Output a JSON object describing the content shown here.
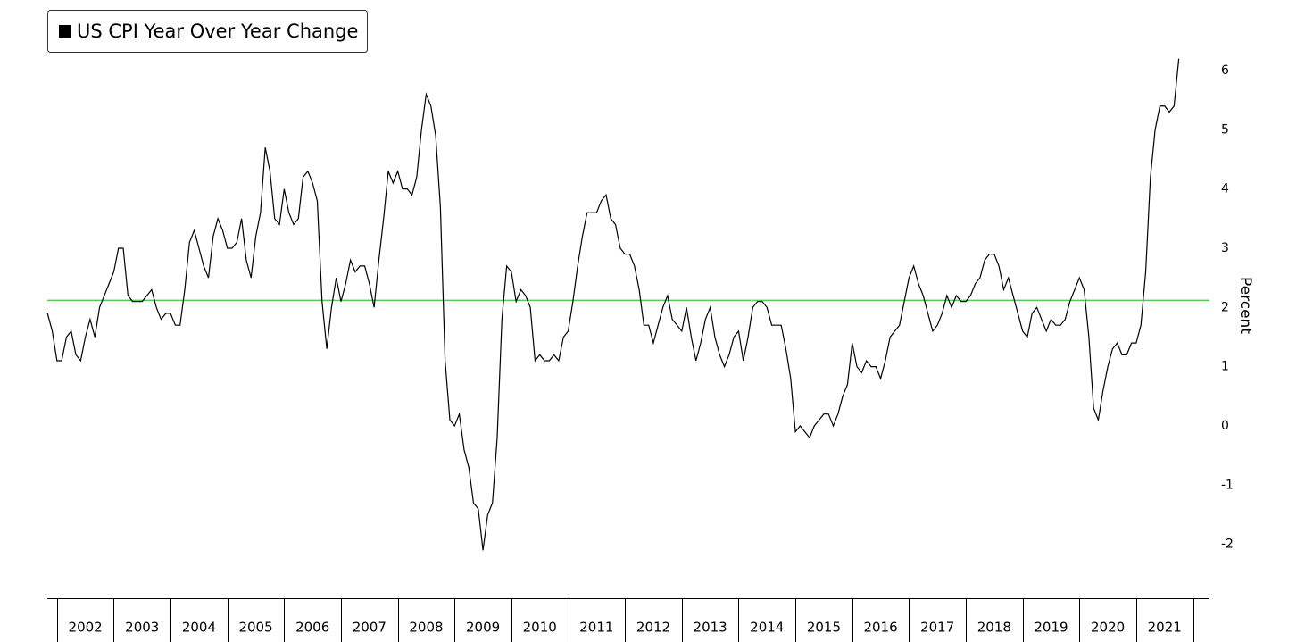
{
  "chart_data": {
    "type": "line",
    "legend_title": "US CPI Year Over Year Change",
    "y_axis_label": "Percent",
    "series": [
      {
        "name": "US CPI Year Over Year Change",
        "color": "#000000",
        "x": [
          2001.833,
          2001.917,
          2002.0,
          2002.083,
          2002.167,
          2002.25,
          2002.333,
          2002.417,
          2002.5,
          2002.583,
          2002.667,
          2002.75,
          2002.833,
          2002.917,
          2003.0,
          2003.083,
          2003.167,
          2003.25,
          2003.333,
          2003.417,
          2003.5,
          2003.583,
          2003.667,
          2003.75,
          2003.833,
          2003.917,
          2004.0,
          2004.083,
          2004.167,
          2004.25,
          2004.333,
          2004.417,
          2004.5,
          2004.583,
          2004.667,
          2004.75,
          2004.833,
          2004.917,
          2005.0,
          2005.083,
          2005.167,
          2005.25,
          2005.333,
          2005.417,
          2005.5,
          2005.583,
          2005.667,
          2005.75,
          2005.833,
          2005.917,
          2006.0,
          2006.083,
          2006.167,
          2006.25,
          2006.333,
          2006.417,
          2006.5,
          2006.583,
          2006.667,
          2006.75,
          2006.833,
          2006.917,
          2007.0,
          2007.083,
          2007.167,
          2007.25,
          2007.333,
          2007.417,
          2007.5,
          2007.583,
          2007.667,
          2007.75,
          2007.833,
          2007.917,
          2008.0,
          2008.083,
          2008.167,
          2008.25,
          2008.333,
          2008.417,
          2008.5,
          2008.583,
          2008.667,
          2008.75,
          2008.833,
          2008.917,
          2009.0,
          2009.083,
          2009.167,
          2009.25,
          2009.333,
          2009.417,
          2009.5,
          2009.583,
          2009.667,
          2009.75,
          2009.833,
          2009.917,
          2010.0,
          2010.083,
          2010.167,
          2010.25,
          2010.333,
          2010.417,
          2010.5,
          2010.583,
          2010.667,
          2010.75,
          2010.833,
          2010.917,
          2011.0,
          2011.083,
          2011.167,
          2011.25,
          2011.333,
          2011.417,
          2011.5,
          2011.583,
          2011.667,
          2011.75,
          2011.833,
          2011.917,
          2012.0,
          2012.083,
          2012.167,
          2012.25,
          2012.333,
          2012.417,
          2012.5,
          2012.583,
          2012.667,
          2012.75,
          2012.833,
          2012.917,
          2013.0,
          2013.083,
          2013.167,
          2013.25,
          2013.333,
          2013.417,
          2013.5,
          2013.583,
          2013.667,
          2013.75,
          2013.833,
          2013.917,
          2014.0,
          2014.083,
          2014.167,
          2014.25,
          2014.333,
          2014.417,
          2014.5,
          2014.583,
          2014.667,
          2014.75,
          2014.833,
          2014.917,
          2015.0,
          2015.083,
          2015.167,
          2015.25,
          2015.333,
          2015.417,
          2015.5,
          2015.583,
          2015.667,
          2015.75,
          2015.833,
          2015.917,
          2016.0,
          2016.083,
          2016.167,
          2016.25,
          2016.333,
          2016.417,
          2016.5,
          2016.583,
          2016.667,
          2016.75,
          2016.833,
          2016.917,
          2017.0,
          2017.083,
          2017.167,
          2017.25,
          2017.333,
          2017.417,
          2017.5,
          2017.583,
          2017.667,
          2017.75,
          2017.833,
          2017.917,
          2018.0,
          2018.083,
          2018.167,
          2018.25,
          2018.333,
          2018.417,
          2018.5,
          2018.583,
          2018.667,
          2018.75,
          2018.833,
          2018.917,
          2019.0,
          2019.083,
          2019.167,
          2019.25,
          2019.333,
          2019.417,
          2019.5,
          2019.583,
          2019.667,
          2019.75,
          2019.833,
          2019.917,
          2020.0,
          2020.083,
          2020.167,
          2020.25,
          2020.333,
          2020.417,
          2020.5,
          2020.583,
          2020.667,
          2020.75,
          2020.833,
          2020.917,
          2021.0,
          2021.083,
          2021.167,
          2021.25,
          2021.333,
          2021.417,
          2021.5,
          2021.583,
          2021.667,
          2021.75
        ],
        "values": [
          1.9,
          1.6,
          1.1,
          1.1,
          1.5,
          1.6,
          1.2,
          1.1,
          1.5,
          1.8,
          1.5,
          2.0,
          2.2,
          2.4,
          2.6,
          3.0,
          3.0,
          2.2,
          2.1,
          2.1,
          2.1,
          2.2,
          2.3,
          2.0,
          1.8,
          1.9,
          1.9,
          1.7,
          1.7,
          2.3,
          3.1,
          3.3,
          3.0,
          2.7,
          2.5,
          3.2,
          3.5,
          3.3,
          3.0,
          3.0,
          3.1,
          3.5,
          2.8,
          2.5,
          3.2,
          3.6,
          4.7,
          4.3,
          3.5,
          3.4,
          4.0,
          3.6,
          3.4,
          3.5,
          4.2,
          4.3,
          4.1,
          3.8,
          2.1,
          1.3,
          2.0,
          2.5,
          2.1,
          2.4,
          2.8,
          2.6,
          2.7,
          2.7,
          2.4,
          2.0,
          2.8,
          3.5,
          4.3,
          4.1,
          4.3,
          4.0,
          4.0,
          3.9,
          4.2,
          5.0,
          5.6,
          5.4,
          4.9,
          3.7,
          1.1,
          0.1,
          0.0,
          0.2,
          -0.4,
          -0.7,
          -1.3,
          -1.4,
          -2.1,
          -1.5,
          -1.3,
          -0.2,
          1.8,
          2.7,
          2.6,
          2.1,
          2.3,
          2.2,
          2.0,
          1.1,
          1.2,
          1.1,
          1.1,
          1.2,
          1.1,
          1.5,
          1.6,
          2.1,
          2.7,
          3.2,
          3.6,
          3.6,
          3.6,
          3.8,
          3.9,
          3.5,
          3.4,
          3.0,
          2.9,
          2.9,
          2.7,
          2.3,
          1.7,
          1.7,
          1.4,
          1.7,
          2.0,
          2.2,
          1.8,
          1.7,
          1.6,
          2.0,
          1.5,
          1.1,
          1.4,
          1.8,
          2.0,
          1.5,
          1.2,
          1.0,
          1.2,
          1.5,
          1.6,
          1.1,
          1.5,
          2.0,
          2.1,
          2.1,
          2.0,
          1.7,
          1.7,
          1.7,
          1.3,
          0.8,
          -0.1,
          0.0,
          -0.1,
          -0.2,
          0.0,
          0.1,
          0.2,
          0.2,
          0.0,
          0.2,
          0.5,
          0.7,
          1.4,
          1.0,
          0.9,
          1.1,
          1.0,
          1.0,
          0.8,
          1.1,
          1.5,
          1.6,
          1.7,
          2.1,
          2.5,
          2.7,
          2.4,
          2.2,
          1.9,
          1.6,
          1.7,
          1.9,
          2.2,
          2.0,
          2.2,
          2.1,
          2.1,
          2.2,
          2.4,
          2.5,
          2.8,
          2.9,
          2.9,
          2.7,
          2.3,
          2.5,
          2.2,
          1.9,
          1.6,
          1.5,
          1.9,
          2.0,
          1.8,
          1.6,
          1.8,
          1.7,
          1.7,
          1.8,
          2.1,
          2.3,
          2.5,
          2.3,
          1.5,
          0.3,
          0.1,
          0.6,
          1.0,
          1.3,
          1.4,
          1.2,
          1.2,
          1.4,
          1.4,
          1.7,
          2.6,
          4.2,
          5.0,
          5.4,
          5.4,
          5.3,
          5.4,
          6.2
        ]
      }
    ],
    "reference_line": {
      "value": 2.12,
      "color": "#55cc55"
    },
    "xlim": [
      2001.83,
      2022.29
    ],
    "ylim": [
      -2.91,
      7.04
    ],
    "yticks": [
      -2,
      -1,
      0,
      1,
      2,
      3,
      4,
      5,
      6
    ],
    "x_separators": [
      2002,
      2003,
      2004,
      2005,
      2006,
      2007,
      2008,
      2009,
      2010,
      2011,
      2012,
      2013,
      2014,
      2015,
      2016,
      2017,
      2018,
      2019,
      2020,
      2021,
      2022
    ],
    "xticks": [
      {
        "value": 2002.5,
        "label": "2002"
      },
      {
        "value": 2003.5,
        "label": "2003"
      },
      {
        "value": 2004.5,
        "label": "2004"
      },
      {
        "value": 2005.5,
        "label": "2005"
      },
      {
        "value": 2006.5,
        "label": "2006"
      },
      {
        "value": 2007.5,
        "label": "2007"
      },
      {
        "value": 2008.5,
        "label": "2008"
      },
      {
        "value": 2009.5,
        "label": "2009"
      },
      {
        "value": 2010.5,
        "label": "2010"
      },
      {
        "value": 2011.5,
        "label": "2011"
      },
      {
        "value": 2012.5,
        "label": "2012"
      },
      {
        "value": 2013.5,
        "label": "2013"
      },
      {
        "value": 2014.5,
        "label": "2014"
      },
      {
        "value": 2015.5,
        "label": "2015"
      },
      {
        "value": 2016.5,
        "label": "2016"
      },
      {
        "value": 2017.5,
        "label": "2017"
      },
      {
        "value": 2018.5,
        "label": "2018"
      },
      {
        "value": 2019.5,
        "label": "2019"
      },
      {
        "value": 2020.5,
        "label": "2020"
      },
      {
        "value": 2021.5,
        "label": "2021"
      }
    ]
  }
}
